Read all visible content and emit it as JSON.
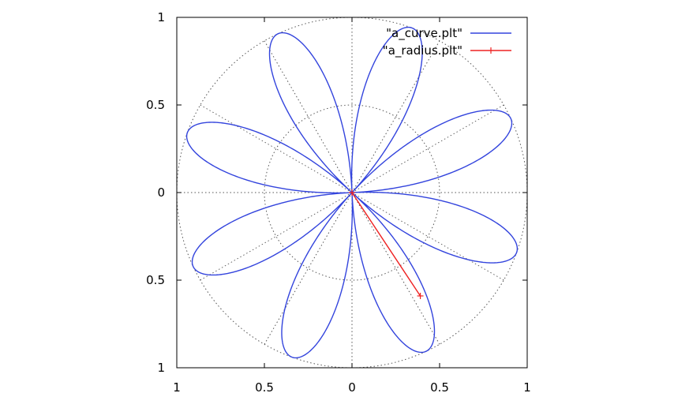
{
  "chart_data": {
    "type": "line",
    "title": "",
    "xlabel": "",
    "ylabel": "",
    "polar": true,
    "grid": true,
    "legend_position": "top-right",
    "xlim": [
      -1,
      1
    ],
    "ylim": [
      -1,
      1
    ],
    "x_tick_values": [
      -1,
      -0.5,
      0,
      0.5,
      1
    ],
    "x_tick_labels": [
      "1",
      "0.5",
      "0",
      "0.5",
      "1"
    ],
    "y_tick_values": [
      1,
      0.5,
      0,
      -0.5,
      -1
    ],
    "y_tick_labels": [
      "1",
      "0.5",
      "0",
      "0.5",
      "1"
    ],
    "grid_circles": [
      0.5,
      1
    ],
    "grid_angles_deg": [
      0,
      30,
      60,
      90,
      120,
      150,
      180,
      210,
      240,
      270,
      300,
      330
    ],
    "series": [
      {
        "name": "\"a_curve.plt\"",
        "color": "#3344dd",
        "style": "line",
        "equation": "r = |cos(4(theta - 70deg))|",
        "amplitude": 1,
        "petals": 8,
        "petal_angles_deg": [
          70,
          115,
          160,
          205,
          250,
          295,
          340,
          25
        ]
      },
      {
        "name": "\"a_radius.plt\"",
        "color": "#ee2222",
        "style": "linespoints",
        "points": [
          {
            "x": 0,
            "y": 0
          },
          {
            "x": 0.39,
            "y": -0.59
          }
        ]
      }
    ]
  }
}
